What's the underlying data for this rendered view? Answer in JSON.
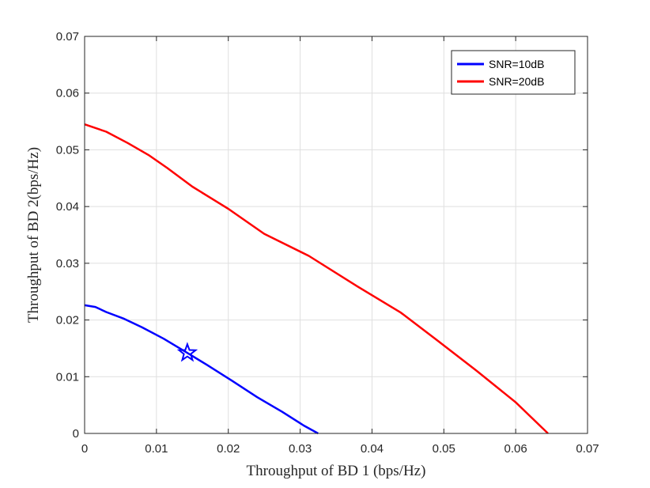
{
  "chart_data": {
    "type": "line",
    "title": "",
    "xlabel": "Throughput of BD 1 (bps/Hz)",
    "ylabel": "Throughput of BD 2(bps/Hz)",
    "xlim": [
      0,
      0.07
    ],
    "ylim": [
      0,
      0.07
    ],
    "xticks": [
      0,
      0.01,
      0.02,
      0.03,
      0.04,
      0.05,
      0.06,
      0.07
    ],
    "yticks": [
      0,
      0.01,
      0.02,
      0.03,
      0.04,
      0.05,
      0.06,
      0.07
    ],
    "xtick_labels": [
      "0",
      "0.01",
      "0.02",
      "0.03",
      "0.04",
      "0.05",
      "0.06",
      "0.07"
    ],
    "ytick_labels": [
      "0",
      "0.01",
      "0.02",
      "0.03",
      "0.04",
      "0.05",
      "0.06",
      "0.07"
    ],
    "grid": true,
    "legend_position": "top-right",
    "series": [
      {
        "name": "SNR=10dB",
        "color": "#0000ff",
        "x": [
          0,
          0.0015,
          0.003,
          0.0055,
          0.008,
          0.011,
          0.0143,
          0.017,
          0.0205,
          0.024,
          0.0275,
          0.0305,
          0.0325
        ],
        "y": [
          0.0226,
          0.0223,
          0.0214,
          0.0202,
          0.0187,
          0.0167,
          0.0142,
          0.0121,
          0.0093,
          0.0064,
          0.0038,
          0.0014,
          0.0
        ],
        "marker": {
          "shape": "star",
          "x": 0.0143,
          "y": 0.0142
        }
      },
      {
        "name": "SNR=20dB",
        "color": "#ff0000",
        "x": [
          0,
          0.003,
          0.006,
          0.009,
          0.0115,
          0.015,
          0.02,
          0.025,
          0.0312,
          0.038,
          0.044,
          0.049,
          0.0545,
          0.06,
          0.0645
        ],
        "y": [
          0.0545,
          0.0532,
          0.0512,
          0.049,
          0.0468,
          0.0435,
          0.0396,
          0.0352,
          0.0313,
          0.0259,
          0.0213,
          0.0165,
          0.0111,
          0.0055,
          0.0
        ]
      }
    ]
  }
}
